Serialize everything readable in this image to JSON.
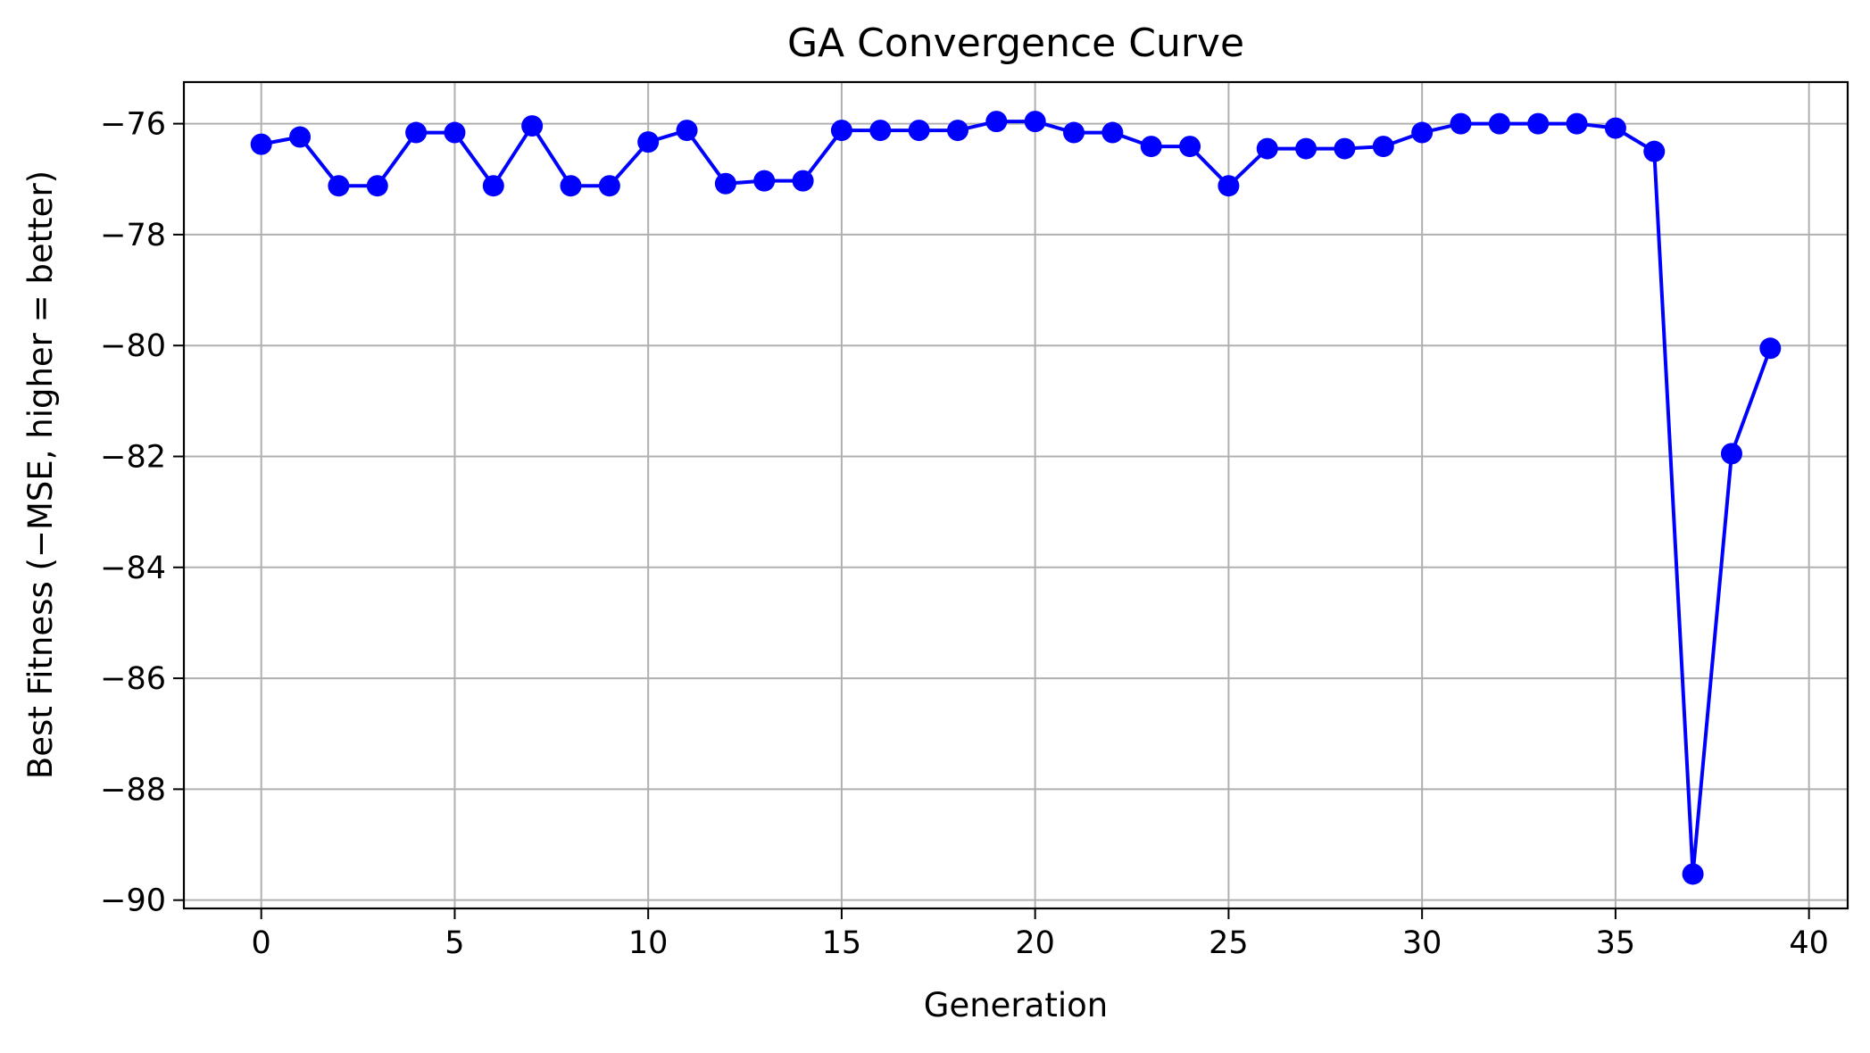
{
  "chart_data": {
    "type": "line",
    "title": "GA Convergence Curve",
    "xlabel": "Generation",
    "ylabel": "Best Fitness (−MSE, higher = better)",
    "xlim": [
      -2,
      41
    ],
    "ylim": [
      -90.15,
      -75.25
    ],
    "x_ticks": [
      0,
      5,
      10,
      15,
      20,
      25,
      30,
      35,
      40
    ],
    "x_tick_labels": [
      "0",
      "5",
      "10",
      "15",
      "20",
      "25",
      "30",
      "35",
      "40"
    ],
    "y_ticks": [
      -90,
      -88,
      -86,
      -84,
      -82,
      -80,
      -78,
      -76
    ],
    "y_tick_labels": [
      "−90",
      "−88",
      "−86",
      "−84",
      "−82",
      "−80",
      "−78",
      "−76"
    ],
    "grid": true,
    "legend": "none",
    "line_color": "#0000ff",
    "grid_color": "#b0b0b0",
    "series": [
      {
        "x": [
          0,
          1,
          2,
          3,
          4,
          5,
          6,
          7,
          8,
          9,
          10,
          11,
          12,
          13,
          14,
          15,
          16,
          17,
          18,
          19,
          20,
          21,
          22,
          23,
          24,
          25,
          26,
          27,
          28,
          29,
          30,
          31,
          32,
          33,
          34,
          35,
          36,
          37,
          38,
          39
        ],
        "values": [
          -76.37,
          -76.24,
          -77.12,
          -77.12,
          -76.16,
          -76.16,
          -77.12,
          -76.04,
          -77.12,
          -77.12,
          -76.33,
          -76.12,
          -77.08,
          -77.03,
          -77.03,
          -76.12,
          -76.12,
          -76.12,
          -76.12,
          -75.96,
          -75.96,
          -76.16,
          -76.16,
          -76.41,
          -76.41,
          -77.12,
          -76.45,
          -76.45,
          -76.45,
          -76.41,
          -76.16,
          -76.0,
          -76.0,
          -76.0,
          -76.0,
          -76.08,
          -76.5,
          -89.53,
          -81.95,
          -80.05
        ]
      }
    ]
  }
}
